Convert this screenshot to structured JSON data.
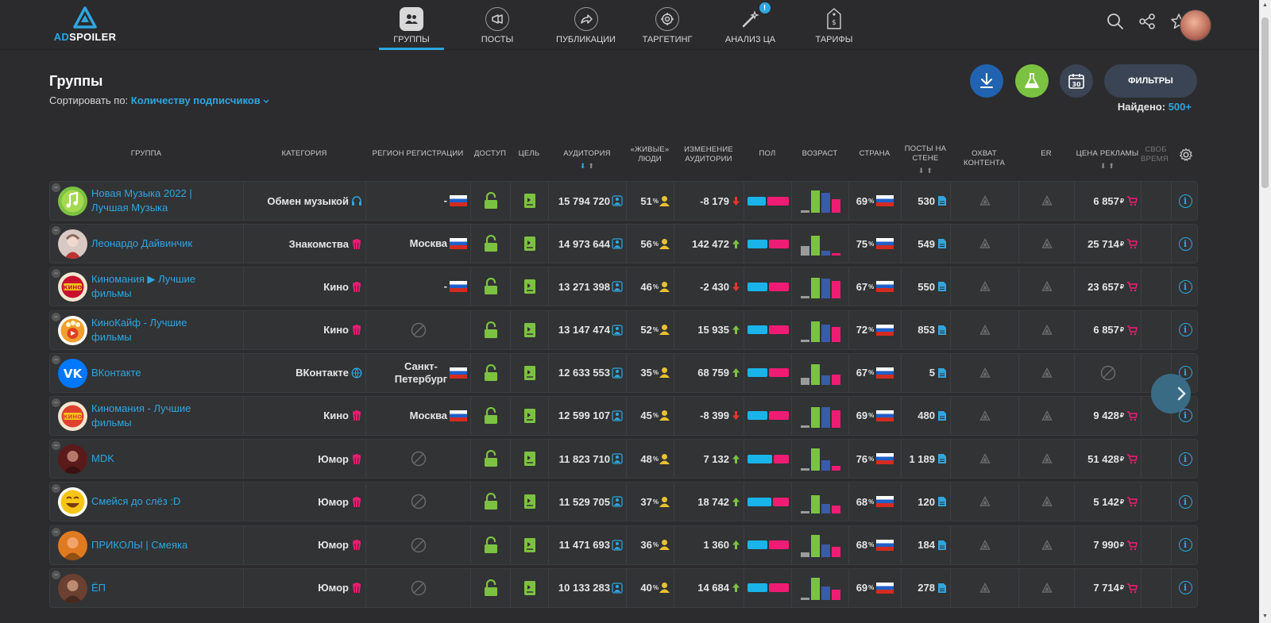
{
  "header": {
    "logo_ad": "AD",
    "logo_rest": "SPOILER",
    "nav": [
      {
        "label": "ГРУППЫ",
        "icon": "groups-icon",
        "active": true
      },
      {
        "label": "ПОСТЫ",
        "icon": "megaphone-icon",
        "active": false
      },
      {
        "label": "ПУБЛИКАЦИИ",
        "icon": "share-arrow-icon",
        "active": false
      },
      {
        "label": "ТАРГЕТИНГ",
        "icon": "target-icon",
        "active": false
      },
      {
        "label": "АНАЛИЗ ЦА",
        "icon": "magic-wand-icon",
        "active": false,
        "badge": "!"
      },
      {
        "label": "ТАРИФЫ",
        "icon": "price-tag-icon",
        "active": false
      }
    ]
  },
  "page": {
    "title": "Группы",
    "sort_label": "Сортировать по:",
    "sort_value": "Количеству подписчиков",
    "filters_label": "ФИЛЬТРЫ",
    "found_label": "Найдено:",
    "found_value": "500+"
  },
  "table": {
    "headers": {
      "group": "ГРУППА",
      "category": "КАТЕГОРИЯ",
      "region": "РЕГИОН РЕГИСТРАЦИИ",
      "access": "ДОСТУП",
      "goal": "ЦЕЛЬ",
      "audience": "АУДИТОРИЯ",
      "live1": "«ЖИВЫЕ»",
      "live2": "ЛЮДИ",
      "change1": "ИЗМЕНЕНИЕ",
      "change2": "АУДИТОРИИ",
      "sex": "ПОЛ",
      "age": "ВОЗРАСТ",
      "country": "СТРАНА",
      "posts1": "ПОСТЫ НА",
      "posts2": "СТЕНЕ",
      "reach": "ОХВАТ КОНТЕНТА",
      "er": "ER",
      "price": "ЦЕНА РЕКЛАМЫ",
      "free1": "СВОБ",
      "free2": "ВРЕМЯ Р"
    },
    "rows": [
      {
        "name_1": "Новая Музыка 2022 |",
        "name_2": "Лучшая Музыка",
        "avatar": "music-note-avatar",
        "avatar_color": "#7cc242",
        "category": "Обмен музыкой",
        "cat_icon": "headphones-icon",
        "region": "-",
        "region_2": "",
        "has_region": true,
        "audience": "15 794 720",
        "live": "51",
        "change": "-8 179",
        "change_dir": "down",
        "sex_m": 0.45,
        "sex_f": 0.55,
        "age": [
          0.1,
          0.95,
          0.85,
          0.6
        ],
        "country_pct": "69",
        "posts": "530",
        "price": "6 857",
        "has_price": true
      },
      {
        "name_1": "Леонардо Дайвинчик",
        "name_2": "",
        "avatar": "leonardo-avatar",
        "avatar_color": "#d9c9c5",
        "category": "Знакомства",
        "cat_icon": "popcorn-icon",
        "region": "Москва",
        "region_2": "",
        "has_region": true,
        "audience": "14 973 644",
        "live": "56",
        "change": "142 472",
        "change_dir": "up",
        "sex_m": 0.5,
        "sex_f": 0.5,
        "age": [
          0.4,
          0.85,
          0.2,
          0.1
        ],
        "country_pct": "75",
        "posts": "549",
        "price": "25 714",
        "has_price": true
      },
      {
        "name_1": "Киномания ▶ Лучшие",
        "name_2": "фильмы",
        "avatar": "kino-avatar",
        "avatar_color": "#c8102e",
        "category": "Кино",
        "cat_icon": "popcorn-icon",
        "region": "-",
        "region_2": "",
        "has_region": true,
        "audience": "13 271 398",
        "live": "46",
        "change": "-2 430",
        "change_dir": "down",
        "sex_m": 0.5,
        "sex_f": 0.5,
        "age": [
          0.1,
          0.9,
          0.85,
          0.75
        ],
        "country_pct": "67",
        "posts": "550",
        "price": "23 657",
        "has_price": true
      },
      {
        "name_1": "КиноКайф - Лучшие",
        "name_2": "фильмы",
        "avatar": "popcorn-avatar",
        "avatar_color": "#f0a030",
        "category": "Кино",
        "cat_icon": "popcorn-icon",
        "region": "",
        "region_2": "",
        "has_region": false,
        "audience": "13 147 474",
        "live": "52",
        "change": "15 935",
        "change_dir": "up",
        "sex_m": 0.5,
        "sex_f": 0.5,
        "age": [
          0.1,
          0.9,
          0.75,
          0.65
        ],
        "country_pct": "72",
        "posts": "853",
        "price": "6 857",
        "has_price": true
      },
      {
        "name_1": "ВКонтакте",
        "name_2": "",
        "avatar": "vk-avatar",
        "avatar_color": "#0077ff",
        "category": "ВКонтакте",
        "cat_icon": "globe-icon",
        "region": "Санкт-",
        "region_2": "Петербург",
        "has_region": true,
        "audience": "12 633 553",
        "live": "35",
        "change": "68 759",
        "change_dir": "up",
        "sex_m": 0.5,
        "sex_f": 0.5,
        "age": [
          0.3,
          0.9,
          0.4,
          0.45
        ],
        "country_pct": "67",
        "posts": "5",
        "price": "",
        "has_price": false
      },
      {
        "name_1": "Киномания - Лучшие",
        "name_2": "фильмы",
        "avatar": "kinomania-avatar",
        "avatar_color": "#e04030",
        "category": "Кино",
        "cat_icon": "popcorn-icon",
        "region": "Москва",
        "region_2": "",
        "has_region": true,
        "audience": "12 599 107",
        "live": "45",
        "change": "-8 399",
        "change_dir": "down",
        "sex_m": 0.5,
        "sex_f": 0.5,
        "age": [
          0.1,
          0.9,
          0.9,
          0.75
        ],
        "country_pct": "69",
        "posts": "480",
        "price": "9 428",
        "has_price": true
      },
      {
        "name_1": "MDK",
        "name_2": "",
        "avatar": "mdk-avatar",
        "avatar_color": "#5a1a1a",
        "category": "Юмор",
        "cat_icon": "popcorn-icon",
        "region": "",
        "region_2": "",
        "has_region": false,
        "audience": "11 823 710",
        "live": "48",
        "change": "7 132",
        "change_dir": "up",
        "sex_m": 0.62,
        "sex_f": 0.38,
        "age": [
          0.1,
          0.95,
          0.45,
          0.2
        ],
        "country_pct": "76",
        "posts": "1 189",
        "price": "51 428",
        "has_price": true
      },
      {
        "name_1": "Смейся до слёз :D",
        "name_2": "",
        "avatar": "laugh-avatar",
        "avatar_color": "#f5c518",
        "category": "Юмор",
        "cat_icon": "popcorn-icon",
        "region": "",
        "region_2": "",
        "has_region": false,
        "audience": "11 529 705",
        "live": "37",
        "change": "18 742",
        "change_dir": "up",
        "sex_m": 0.6,
        "sex_f": 0.4,
        "age": [
          0.1,
          0.8,
          0.4,
          0.35
        ],
        "country_pct": "68",
        "posts": "120",
        "price": "5 142",
        "has_price": true
      },
      {
        "name_1": "ПРИКОЛЫ | Смеяка",
        "name_2": "",
        "avatar": "smeyaka-avatar",
        "avatar_color": "#e07a20",
        "category": "Юмор",
        "cat_icon": "popcorn-icon",
        "region": "",
        "region_2": "",
        "has_region": false,
        "audience": "11 471 693",
        "live": "36",
        "change": "1 360",
        "change_dir": "up",
        "sex_m": 0.5,
        "sex_f": 0.5,
        "age": [
          0.2,
          0.95,
          0.55,
          0.45
        ],
        "country_pct": "68",
        "posts": "184",
        "price": "7 990",
        "has_price": true
      },
      {
        "name_1": "ЁП",
        "name_2": "",
        "avatar": "ep-avatar",
        "avatar_color": "#6a4030",
        "category": "Юмор",
        "cat_icon": "popcorn-icon",
        "region": "",
        "region_2": "",
        "has_region": false,
        "audience": "10 133 283",
        "live": "40",
        "change": "14 684",
        "change_dir": "up",
        "sex_m": 0.5,
        "sex_f": 0.5,
        "age": [
          0.1,
          0.95,
          0.6,
          0.45
        ],
        "country_pct": "69",
        "posts": "278",
        "price": "7 714",
        "has_price": true
      }
    ]
  },
  "colors": {
    "accent": "#2ea6e0",
    "green": "#7cc242",
    "male": "#18b4ea",
    "female": "#ef1c74",
    "age_gray": "#9a9a9a",
    "age_navy": "#3a5ba8",
    "red": "#e8352a"
  },
  "currency": "₽"
}
